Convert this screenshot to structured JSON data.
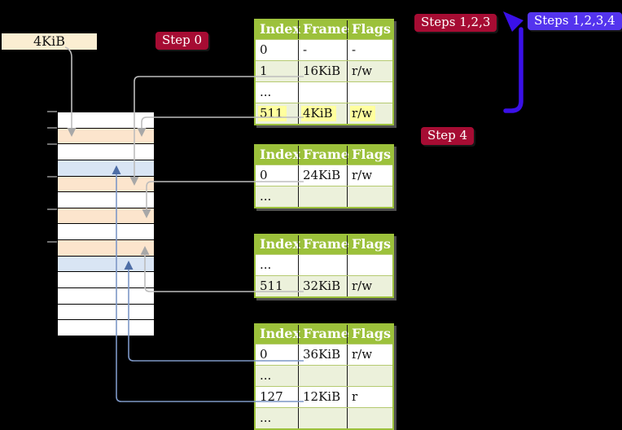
{
  "label_4kib": "4KiB",
  "badges": {
    "step0": "Step 0",
    "steps123": "Steps 1,2,3",
    "steps1234": "Steps 1,2,3,4",
    "step4": "Step 4"
  },
  "tables": [
    {
      "name": "page-table-level-top",
      "headers": [
        "Index",
        "Frame",
        "Flags"
      ],
      "rows": [
        {
          "cells": [
            "0",
            "-",
            "-"
          ],
          "shade": false,
          "highlight": false
        },
        {
          "cells": [
            "1",
            "16KiB",
            "r/w"
          ],
          "shade": true,
          "highlight": false
        },
        {
          "cells": [
            "...",
            "",
            ""
          ],
          "shade": false,
          "highlight": false
        },
        {
          "cells": [
            "511",
            "4KiB",
            "r/w"
          ],
          "shade": true,
          "highlight": true
        }
      ]
    },
    {
      "name": "page-table-second",
      "headers": [
        "Index",
        "Frame",
        "Flags"
      ],
      "rows": [
        {
          "cells": [
            "0",
            "24KiB",
            "r/w"
          ],
          "shade": false,
          "highlight": false
        },
        {
          "cells": [
            "...",
            "",
            ""
          ],
          "shade": true,
          "highlight": false
        }
      ]
    },
    {
      "name": "page-table-third",
      "headers": [
        "Index",
        "Frame",
        "Flags"
      ],
      "rows": [
        {
          "cells": [
            "...",
            "",
            ""
          ],
          "shade": false,
          "highlight": false
        },
        {
          "cells": [
            "511",
            "32KiB",
            "r/w"
          ],
          "shade": true,
          "highlight": false
        }
      ]
    },
    {
      "name": "page-table-fourth",
      "headers": [
        "Index",
        "Frame",
        "Flags"
      ],
      "rows": [
        {
          "cells": [
            "0",
            "36KiB",
            "r/w"
          ],
          "shade": false,
          "highlight": false
        },
        {
          "cells": [
            "...",
            "",
            ""
          ],
          "shade": true,
          "highlight": false
        },
        {
          "cells": [
            "127",
            "12KiB",
            "r"
          ],
          "shade": false,
          "highlight": false
        },
        {
          "cells": [
            "...",
            "",
            ""
          ],
          "shade": true,
          "highlight": false
        }
      ]
    }
  ],
  "memory": {
    "rows": [
      "white",
      "peach",
      "white",
      "blue",
      "peach",
      "white",
      "peach",
      "white",
      "peach",
      "blue",
      "white",
      "white",
      "white",
      "white"
    ]
  },
  "palette": {
    "table_header_green": "#9cc13b",
    "table_row_green": "#ecf1db",
    "highlight_yellow": "#ffff9e",
    "badge_red": "#a60c33",
    "badge_blue": "#5434ee",
    "big_arrow_blue": "#3a10e8",
    "memory_peach": "#fce5cd",
    "memory_blue": "#d9e5f4",
    "connector_gray": "#bdbdbd",
    "connector_blue": "#7d97c6",
    "label_cream": "#fbeed2"
  }
}
